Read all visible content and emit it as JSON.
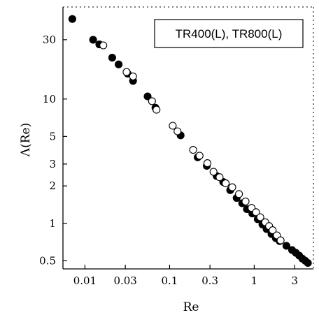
{
  "chart_data": {
    "type": "scatter",
    "xlabel": "Re",
    "ylabel": "Λ(Re)",
    "xscale": "log",
    "yscale": "log",
    "xlim": [
      0.0055,
      5.0
    ],
    "ylim": [
      0.43,
      55
    ],
    "x_ticks": [
      0.01,
      0.03,
      0.1,
      0.3,
      1,
      3
    ],
    "x_tick_labels": [
      "0.01",
      "0.03",
      "0.1",
      "0.3",
      "1",
      "3"
    ],
    "y_ticks": [
      0.5,
      1,
      2,
      3,
      5,
      10,
      30
    ],
    "y_tick_labels": [
      "0.5",
      "1",
      "2",
      "3",
      "5",
      "10",
      "30"
    ],
    "grid": false,
    "legend_text": "TR400(L), TR800(L)",
    "legend_position": "top-right",
    "series": [
      {
        "marker": "filled-circle",
        "color": "#000000",
        "points": [
          [
            0.0071,
            44
          ],
          [
            0.0125,
            30
          ],
          [
            0.0148,
            27.5
          ],
          [
            0.021,
            21.5
          ],
          [
            0.025,
            19
          ],
          [
            0.032,
            16
          ],
          [
            0.037,
            14
          ],
          [
            0.055,
            10.5
          ],
          [
            0.068,
            8.5
          ],
          [
            0.135,
            5.1
          ],
          [
            0.215,
            3.4
          ],
          [
            0.275,
            2.9
          ],
          [
            0.36,
            2.4
          ],
          [
            0.43,
            2.15
          ],
          [
            0.52,
            1.85
          ],
          [
            0.62,
            1.6
          ],
          [
            0.72,
            1.45
          ],
          [
            0.82,
            1.3
          ],
          [
            0.95,
            1.2
          ],
          [
            1.1,
            1.08
          ],
          [
            1.25,
            0.98
          ],
          [
            1.4,
            0.9
          ],
          [
            1.6,
            0.82
          ],
          [
            1.8,
            0.76
          ],
          [
            2.0,
            0.72
          ],
          [
            2.4,
            0.66
          ],
          [
            2.8,
            0.61
          ],
          [
            3.1,
            0.58
          ],
          [
            3.4,
            0.55
          ],
          [
            3.7,
            0.52
          ],
          [
            4.0,
            0.5
          ],
          [
            4.3,
            0.48
          ]
        ]
      },
      {
        "marker": "open-circle",
        "color": "#000000",
        "points": [
          [
            0.0165,
            27
          ],
          [
            0.031,
            16.5
          ],
          [
            0.037,
            15.2
          ],
          [
            0.062,
            9.6
          ],
          [
            0.07,
            8.2
          ],
          [
            0.109,
            6.1
          ],
          [
            0.124,
            5.5
          ],
          [
            0.19,
            3.9
          ],
          [
            0.226,
            3.5
          ],
          [
            0.28,
            3.05
          ],
          [
            0.33,
            2.6
          ],
          [
            0.39,
            2.35
          ],
          [
            0.46,
            2.1
          ],
          [
            0.55,
            1.95
          ],
          [
            0.66,
            1.72
          ],
          [
            0.79,
            1.5
          ],
          [
            0.93,
            1.33
          ],
          [
            1.05,
            1.23
          ],
          [
            1.18,
            1.12
          ],
          [
            1.35,
            1.02
          ],
          [
            1.5,
            0.95
          ],
          [
            1.65,
            0.88
          ],
          [
            1.85,
            0.8
          ],
          [
            2.05,
            0.73
          ]
        ]
      }
    ]
  }
}
